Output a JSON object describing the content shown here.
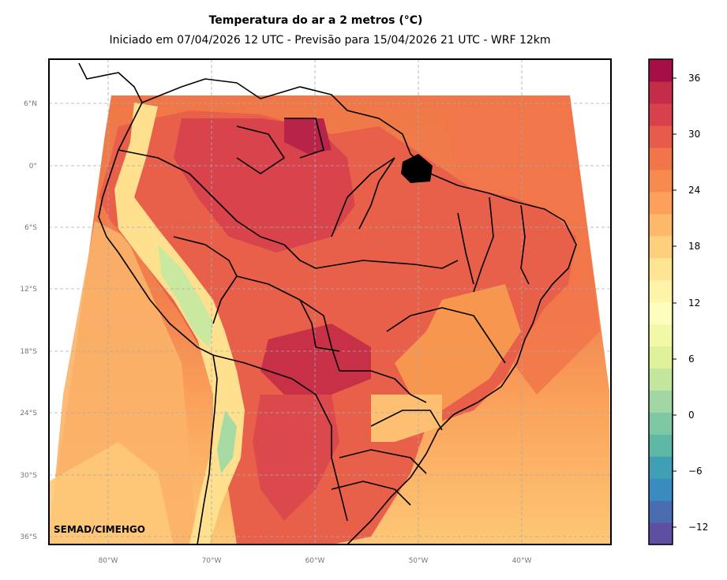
{
  "title": "Temperatura do ar a 2 metros (°C)",
  "subtitle": "Iniciado em 07/04/2026 12 UTC - Previsão para 15/04/2026 21 UTC - WRF 12km",
  "credit": "SEMAD/CIMEHGO",
  "lat_labels": [
    "6°N",
    "0°",
    "6°S",
    "12°S",
    "18°S",
    "24°S",
    "30°S",
    "36°S"
  ],
  "lon_labels": [
    "80°W",
    "70°W",
    "60°W",
    "50°W",
    "40°W"
  ],
  "colorbar": {
    "tick_labels": [
      "36",
      "30",
      "24",
      "18",
      "12",
      "6",
      "0",
      "−6",
      "−12"
    ],
    "colors": [
      "#5e4fa2",
      "#4a6db2",
      "#3a8bc0",
      "#419fb5",
      "#5db8a6",
      "#7ec9a4",
      "#a0d7a4",
      "#c3e69f",
      "#dff29b",
      "#f1f9a8",
      "#fdfebe",
      "#fef3a9",
      "#fee593",
      "#fed07e",
      "#fdb96a",
      "#fca05b",
      "#f68a4f",
      "#f17548",
      "#e65b49",
      "#d8414c",
      "#c42c4a",
      "#a50f45"
    ]
  },
  "colors": {
    "ocean_warm": "#f07848",
    "ocean_mild": "#fcb266",
    "ocean_cool": "#fdc776",
    "land_hot": "#d13f4c",
    "land_warm": "#e8604a",
    "andes_cool": "#fef0a5",
    "andes_cold": "#c9e8a0"
  }
}
